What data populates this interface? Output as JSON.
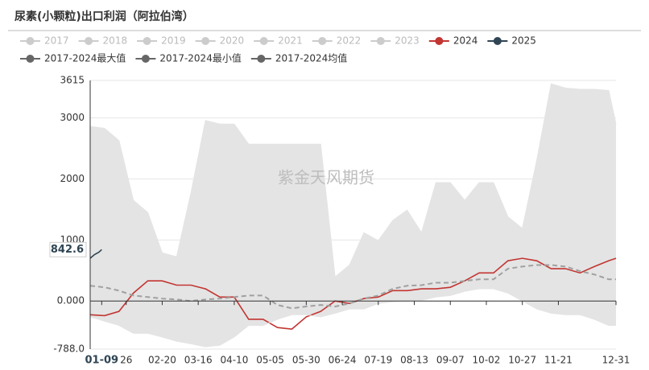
{
  "chart_data": {
    "type": "line",
    "title": "尿素(小颗粒)出口利润（阿拉伯湾）",
    "annotation": "紫金天风期货",
    "xlim": [
      0,
      365
    ],
    "ylim": [
      -788,
      3615
    ],
    "yticks": [
      3615,
      3000,
      2000,
      1000,
      {
        "value": 0,
        "label": "0.000"
      },
      {
        "value": -788,
        "label": "-788.0"
      }
    ],
    "xticks": [
      {
        "value": 8,
        "label": "01-09"
      },
      {
        "value": 25,
        "label": "26"
      },
      {
        "value": 50,
        "label": "02-20"
      },
      {
        "value": 75,
        "label": "03-16"
      },
      {
        "value": 100,
        "label": "04-10"
      },
      {
        "value": 125,
        "label": "05-05"
      },
      {
        "value": 150,
        "label": "05-30"
      },
      {
        "value": 175,
        "label": "06-24"
      },
      {
        "value": 200,
        "label": "07-19"
      },
      {
        "value": 225,
        "label": "08-13"
      },
      {
        "value": 250,
        "label": "09-07"
      },
      {
        "value": 275,
        "label": "10-02"
      },
      {
        "value": 300,
        "label": "10-27"
      },
      {
        "value": 325,
        "label": "11-21"
      },
      {
        "value": 365,
        "label": "12-31"
      }
    ],
    "grid": true,
    "band_color": "#e4e4e4",
    "x": [
      0,
      10,
      20,
      30,
      40,
      50,
      60,
      70,
      80,
      90,
      100,
      110,
      120,
      130,
      140,
      150,
      160,
      170,
      180,
      190,
      200,
      210,
      220,
      230,
      240,
      250,
      260,
      270,
      280,
      290,
      300,
      310,
      320,
      330,
      340,
      350,
      360,
      365
    ],
    "series": [
      {
        "name": "2017",
        "color": "#cccccc",
        "visible": false
      },
      {
        "name": "2018",
        "color": "#cccccc",
        "visible": false
      },
      {
        "name": "2019",
        "color": "#cccccc",
        "visible": false
      },
      {
        "name": "2020",
        "color": "#cccccc",
        "visible": false
      },
      {
        "name": "2021",
        "color": "#cccccc",
        "visible": false
      },
      {
        "name": "2022",
        "color": "#cccccc",
        "visible": false
      },
      {
        "name": "2023",
        "color": "#cccccc",
        "visible": false
      },
      {
        "name": "2024",
        "color": "#c23531",
        "values": [
          -225,
          -240,
          -170,
          130,
          330,
          330,
          260,
          260,
          200,
          65,
          65,
          -300,
          -300,
          -435,
          -460,
          -260,
          -170,
          0,
          -40,
          40,
          65,
          170,
          170,
          200,
          200,
          225,
          330,
          460,
          460,
          660,
          700,
          660,
          530,
          530,
          460,
          565,
          660,
          700
        ]
      },
      {
        "name": "2025",
        "color": "#2f4554",
        "x": [
          0,
          3,
          6,
          8
        ],
        "values": [
          700,
          760,
          800,
          842.6
        ]
      },
      {
        "name": "2017-2024最大值",
        "color": "#666666",
        "band": "upper",
        "values": [
          2860,
          2830,
          2630,
          1650,
          1450,
          790,
          725,
          1780,
          2960,
          2900,
          2900,
          2570,
          2570,
          2570,
          2570,
          2570,
          2570,
          395,
          590,
          1120,
          990,
          1320,
          1490,
          1120,
          1940,
          1940,
          1650,
          1940,
          1940,
          1380,
          1190,
          2310,
          3560,
          3490,
          3470,
          3470,
          3450,
          2900
        ]
      },
      {
        "name": "2017-2024最小值",
        "color": "#666666",
        "band": "lower",
        "values": [
          -260,
          -330,
          -400,
          -530,
          -530,
          -590,
          -660,
          -700,
          -750,
          -725,
          -590,
          -400,
          -400,
          -300,
          -225,
          -225,
          -260,
          -200,
          -130,
          -130,
          -40,
          -13,
          0,
          13,
          65,
          90,
          160,
          200,
          200,
          130,
          0,
          -130,
          -200,
          -225,
          -225,
          -300,
          -400,
          -400
        ]
      },
      {
        "name": "2017-2024均值",
        "color": "#666666",
        "line_color": "#a0a0a0",
        "dashed": true,
        "values": [
          250,
          225,
          170,
          90,
          65,
          40,
          25,
          0,
          25,
          40,
          65,
          90,
          90,
          -65,
          -120,
          -90,
          -65,
          -90,
          -40,
          40,
          90,
          200,
          250,
          260,
          300,
          300,
          330,
          355,
          355,
          530,
          565,
          590,
          590,
          565,
          490,
          435,
          355,
          355
        ]
      }
    ]
  }
}
